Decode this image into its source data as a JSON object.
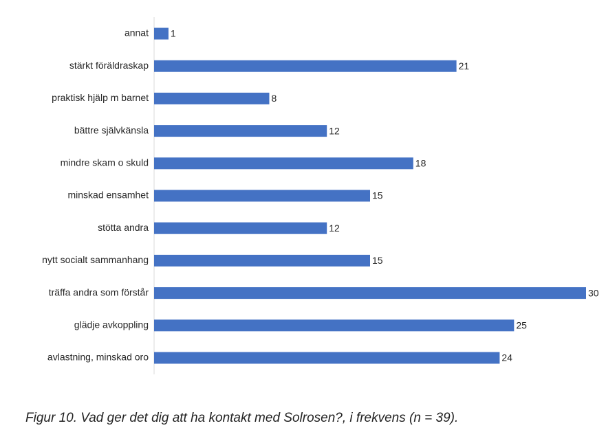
{
  "chart_data": {
    "type": "bar",
    "orientation": "horizontal",
    "caption": "Figur 10. Vad ger det dig att ha kontakt med Solrosen?, i frekvens (n = 39).",
    "categories": [
      "annat",
      "stärkt föräldraskap",
      "praktisk hjälp m barnet",
      "bättre självkänsla",
      "mindre skam o skuld",
      "minskad ensamhet",
      "stötta andra",
      "nytt socialt sammanhang",
      "träffa andra som förstår",
      "glädje avkoppling",
      "avlastning, minskad oro"
    ],
    "values": [
      1,
      21,
      8,
      12,
      18,
      15,
      12,
      15,
      30,
      25,
      24
    ],
    "color": "#4472c4"
  }
}
